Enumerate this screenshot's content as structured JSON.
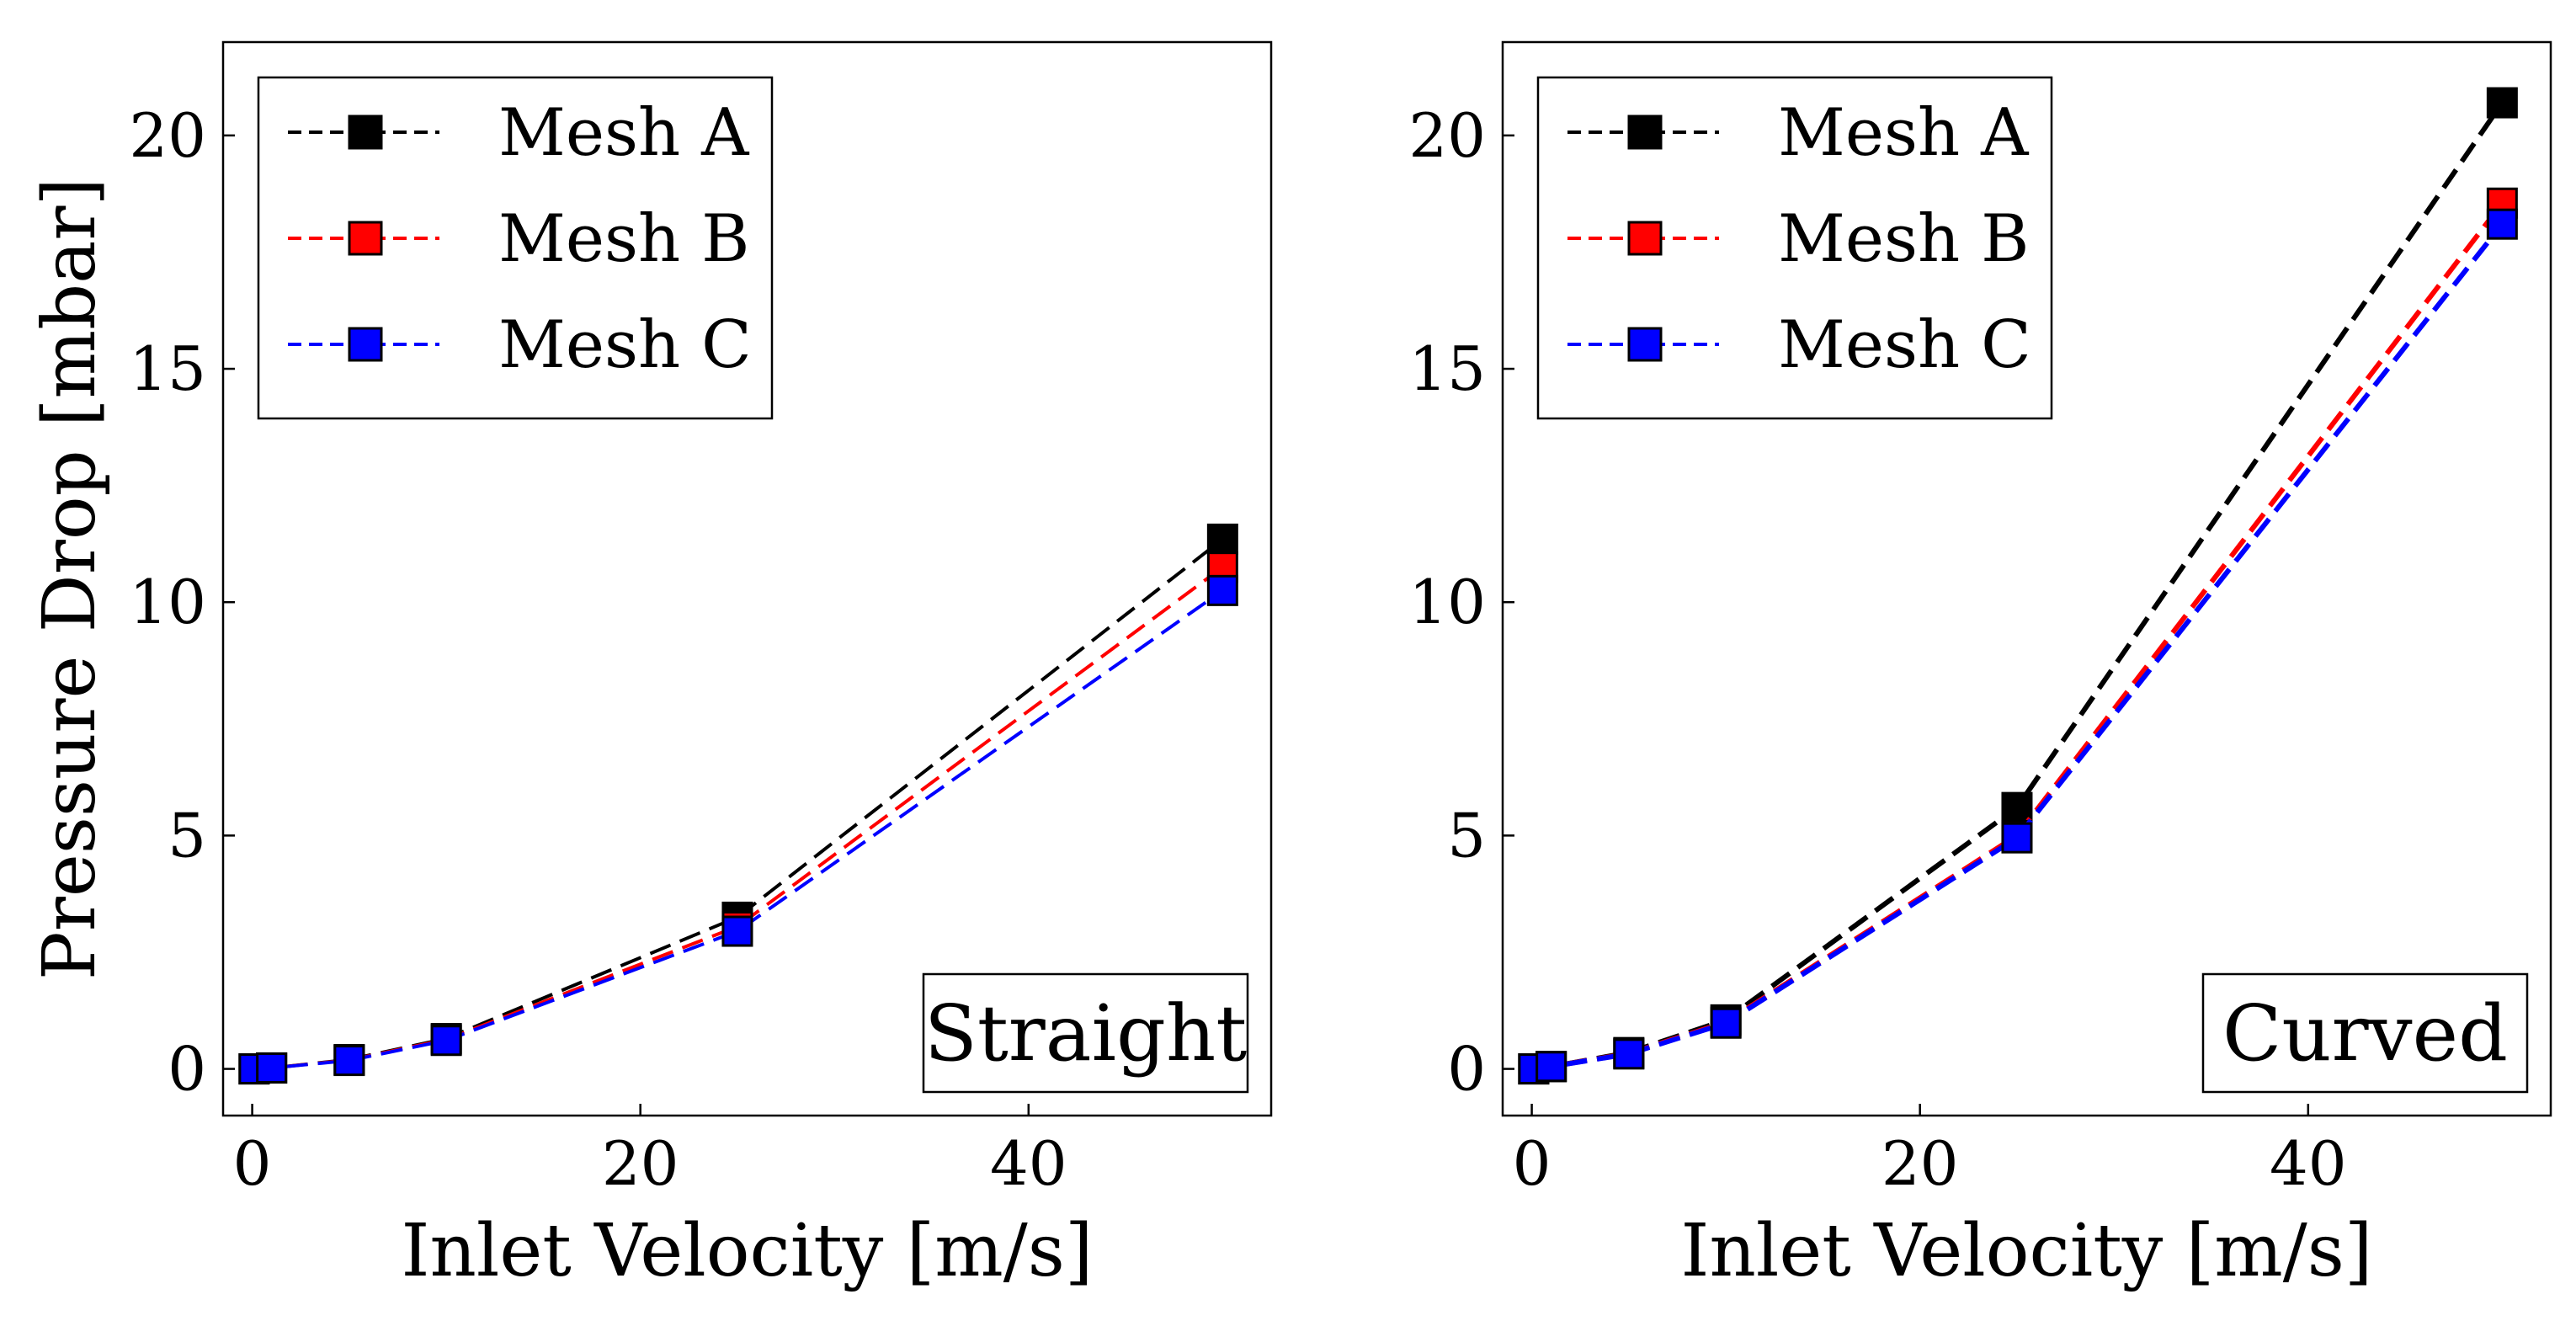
{
  "chart_data": [
    {
      "type": "line",
      "title": "",
      "panel_label": "Straight",
      "xlabel": "Inlet Velocity [m/s]",
      "ylabel": "Pressure Drop [mbar]",
      "xlim": [
        -1.5,
        52.5
      ],
      "ylim": [
        -1.0,
        22.0
      ],
      "xticks": [
        0,
        20,
        40
      ],
      "yticks": [
        0,
        5,
        10,
        15,
        20
      ],
      "grid": false,
      "legend_position": "top-left",
      "line_style": "dashed",
      "marker": "square",
      "x": [
        0.1,
        1,
        5,
        10,
        25,
        50
      ],
      "series": [
        {
          "name": "Mesh A",
          "color": "#000000",
          "values": [
            0.0,
            0.02,
            0.2,
            0.65,
            3.25,
            11.35
          ]
        },
        {
          "name": "Mesh B",
          "color": "#ff0000",
          "values": [
            0.0,
            0.02,
            0.19,
            0.63,
            3.05,
            10.75
          ]
        },
        {
          "name": "Mesh C",
          "color": "#0000ff",
          "values": [
            0.0,
            0.02,
            0.18,
            0.61,
            2.95,
            10.25
          ]
        }
      ]
    },
    {
      "type": "line",
      "title": "",
      "panel_label": "Curved",
      "xlabel": "Inlet Velocity [m/s]",
      "ylabel": "",
      "xlim": [
        -1.5,
        52.5
      ],
      "ylim": [
        -1.0,
        22.0
      ],
      "xticks": [
        0,
        20,
        40
      ],
      "yticks": [
        0,
        5,
        10,
        15,
        20
      ],
      "grid": false,
      "legend_position": "top-left",
      "line_style": "dashed",
      "marker": "square",
      "x": [
        0.1,
        1,
        5,
        10,
        25,
        50
      ],
      "series": [
        {
          "name": "Mesh A",
          "color": "#000000",
          "values": [
            0.0,
            0.05,
            0.35,
            1.05,
            5.6,
            20.7
          ]
        },
        {
          "name": "Mesh B",
          "color": "#ff0000",
          "values": [
            0.0,
            0.05,
            0.33,
            1.0,
            5.0,
            18.55
          ]
        },
        {
          "name": "Mesh C",
          "color": "#0000ff",
          "values": [
            0.0,
            0.05,
            0.32,
            0.98,
            4.95,
            18.1
          ]
        }
      ]
    }
  ]
}
